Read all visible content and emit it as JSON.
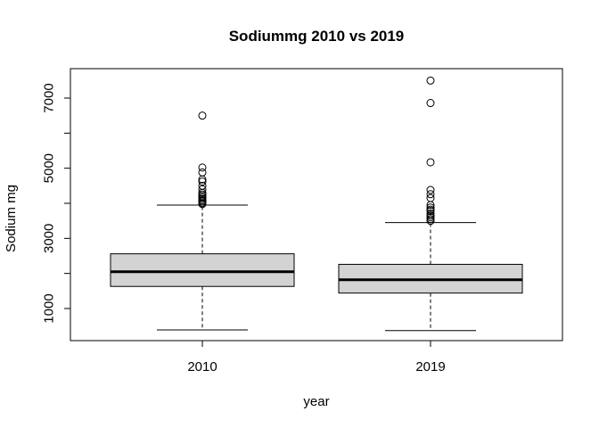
{
  "chart_data": {
    "type": "box",
    "title": "Sodiummg 2010 vs 2019",
    "xlabel": "year",
    "ylabel": "Sodium mg",
    "categories": [
      "2010",
      "2019"
    ],
    "yticks": [
      1000,
      3000,
      5000,
      7000
    ],
    "yminor": [
      2000,
      4000,
      6000
    ],
    "ylim": [
      100,
      7800
    ],
    "grid": false,
    "legend": "none",
    "box_fill": "#d3d3d3",
    "boxes": [
      {
        "category": "2010",
        "whisker_low": 390,
        "q1": 1630,
        "median": 2050,
        "q3": 2560,
        "whisker_high": 3950,
        "outliers": [
          3980,
          4010,
          4050,
          4080,
          4120,
          4160,
          4200,
          4250,
          4300,
          4400,
          4500,
          4620,
          4680,
          4880,
          5020,
          6500
        ]
      },
      {
        "category": "2019",
        "whisker_low": 370,
        "q1": 1440,
        "median": 1820,
        "q3": 2260,
        "whisker_high": 3450,
        "outliers": [
          3500,
          3550,
          3600,
          3650,
          3700,
          3780,
          3820,
          3880,
          3950,
          4150,
          4260,
          4380,
          5170,
          6860,
          7500
        ]
      }
    ]
  }
}
